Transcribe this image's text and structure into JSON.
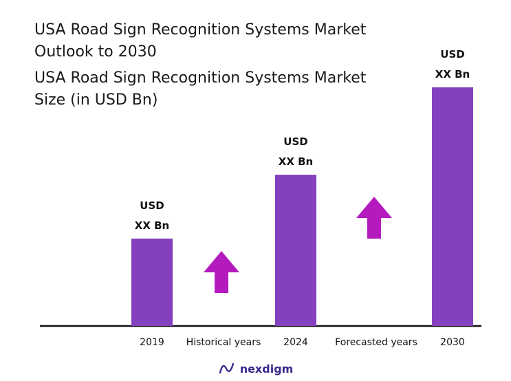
{
  "header": {
    "title_line1": "USA Road Sign Recognition Systems Market",
    "title_line2": "Outlook to 2030",
    "subtitle_line1": "USA Road Sign Recognition Systems Market",
    "subtitle_line2": "Size (in USD Bn)"
  },
  "colors": {
    "bar": "#8540bf",
    "arrow": "#b31bbf",
    "axis": "#111111",
    "logo": "#3b2a8c"
  },
  "chart_data": {
    "type": "bar",
    "categories": [
      "2019",
      "2024",
      "2030"
    ],
    "values": [
      1.0,
      1.73,
      2.73
    ],
    "value_labels": [
      [
        "USD",
        "XX Bn"
      ],
      [
        "USD",
        "XX Bn"
      ],
      [
        "USD",
        "XX Bn"
      ]
    ],
    "between_labels": [
      "Historical years",
      "Forecasted years"
    ],
    "title": "USA Road Sign Recognition Systems Market Size (in USD Bn)",
    "xlabel": "",
    "ylabel": "",
    "ylim": [
      0,
      2.73
    ],
    "grid": false,
    "arrows": [
      "up",
      "up"
    ]
  },
  "footer": {
    "logo_icon": "nexdigm-logo-icon",
    "logo_text": "nexdigm"
  }
}
